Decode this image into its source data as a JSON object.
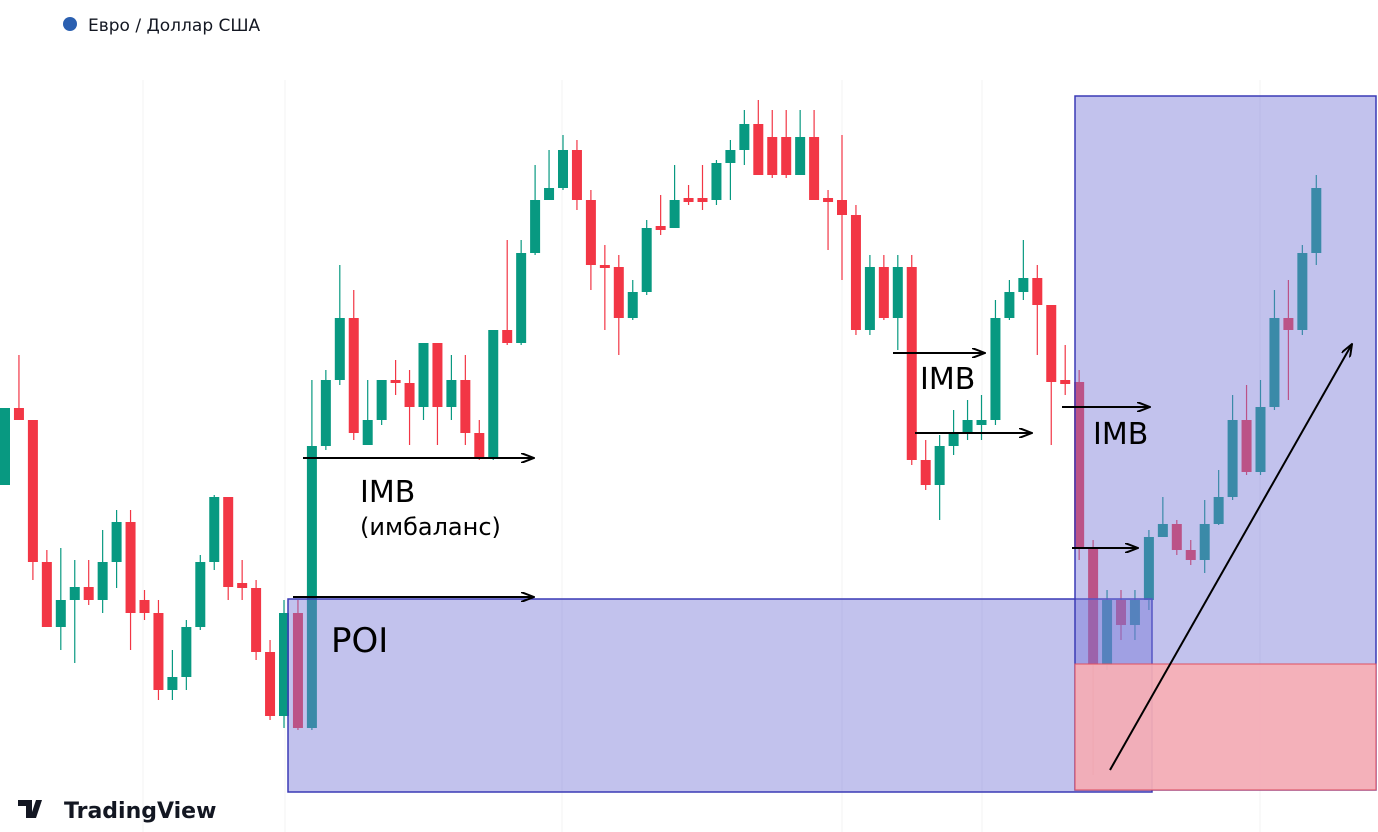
{
  "chart_data": {
    "type": "candlestick",
    "title": "Евро / Доллар США",
    "open": [
      347,
      424,
      412,
      270,
      205,
      232,
      245,
      232,
      270,
      310,
      232,
      219,
      142,
      155,
      205,
      270,
      335,
      249,
      244,
      180,
      116,
      219,
      104,
      386,
      452,
      514,
      387,
      412,
      452,
      449,
      425,
      489,
      425,
      452,
      399,
      374,
      502,
      489,
      579,
      632,
      644,
      682,
      632,
      567,
      565,
      514,
      540,
      606,
      604,
      634,
      634,
      632,
      669,
      682,
      708,
      695,
      695,
      657,
      695,
      634,
      632,
      617,
      502,
      565,
      514,
      565,
      372,
      347,
      386,
      399,
      407,
      412,
      514,
      540,
      554,
      527,
      452,
      450,
      284,
      167,
      232,
      207,
      232,
      295,
      308,
      282,
      272,
      308,
      335,
      412,
      360,
      425,
      514,
      502,
      579
    ],
    "high": [
      424,
      477,
      412,
      282,
      284,
      272,
      272,
      302,
      322,
      322,
      242,
      232,
      182,
      212,
      277,
      337,
      335,
      272,
      252,
      192,
      232,
      232,
      452,
      462,
      567,
      542,
      452,
      452,
      472,
      462,
      489,
      489,
      477,
      477,
      412,
      502,
      592,
      592,
      667,
      682,
      697,
      692,
      642,
      587,
      577,
      552,
      612,
      637,
      667,
      647,
      667,
      672,
      692,
      722,
      732,
      722,
      722,
      722,
      722,
      642,
      697,
      627,
      577,
      577,
      577,
      577,
      392,
      397,
      422,
      432,
      437,
      532,
      552,
      592,
      567,
      527,
      487,
      462,
      292,
      242,
      242,
      242,
      302,
      335,
      312,
      292,
      332,
      362,
      437,
      447,
      452,
      542,
      552,
      587,
      657
    ],
    "low": [
      347,
      412,
      252,
      205,
      182,
      169,
      227,
      219,
      244,
      182,
      212,
      132,
      132,
      142,
      202,
      262,
      232,
      232,
      172,
      112,
      104,
      102,
      102,
      382,
      447,
      392,
      387,
      407,
      437,
      387,
      412,
      387,
      412,
      387,
      372,
      372,
      487,
      487,
      577,
      632,
      642,
      622,
      542,
      502,
      477,
      512,
      537,
      597,
      604,
      627,
      622,
      627,
      632,
      667,
      657,
      654,
      654,
      657,
      632,
      582,
      552,
      497,
      497,
      512,
      482,
      367,
      342,
      312,
      377,
      392,
      392,
      407,
      512,
      532,
      477,
      387,
      437,
      272,
      57,
      162,
      192,
      192,
      222,
      295,
      277,
      267,
      259,
      307,
      332,
      357,
      357,
      422,
      432,
      497,
      567
    ],
    "close": [
      424,
      412,
      270,
      205,
      232,
      245,
      232,
      270,
      310,
      219,
      219,
      142,
      155,
      205,
      270,
      335,
      245,
      244,
      180,
      116,
      219,
      104,
      386,
      452,
      514,
      399,
      412,
      452,
      449,
      425,
      489,
      425,
      452,
      399,
      374,
      502,
      489,
      579,
      632,
      644,
      682,
      632,
      567,
      564,
      514,
      540,
      604,
      602,
      632,
      630,
      630,
      669,
      682,
      708,
      657,
      657,
      657,
      695,
      632,
      630,
      617,
      502,
      565,
      514,
      565,
      372,
      347,
      386,
      399,
      412,
      412,
      514,
      540,
      554,
      527,
      450,
      448,
      284,
      167,
      232,
      207,
      232,
      295,
      308,
      282,
      272,
      308,
      335,
      412,
      360,
      425,
      514,
      502,
      579,
      644
    ],
    "up_color": "#089981",
    "down_color": "#f23645",
    "ylim": [
      0,
      832
    ],
    "annotations": [
      "IMB",
      "(имбаланс)",
      "POI",
      "IMB",
      "IMB"
    ],
    "watermark": "TradingView"
  }
}
